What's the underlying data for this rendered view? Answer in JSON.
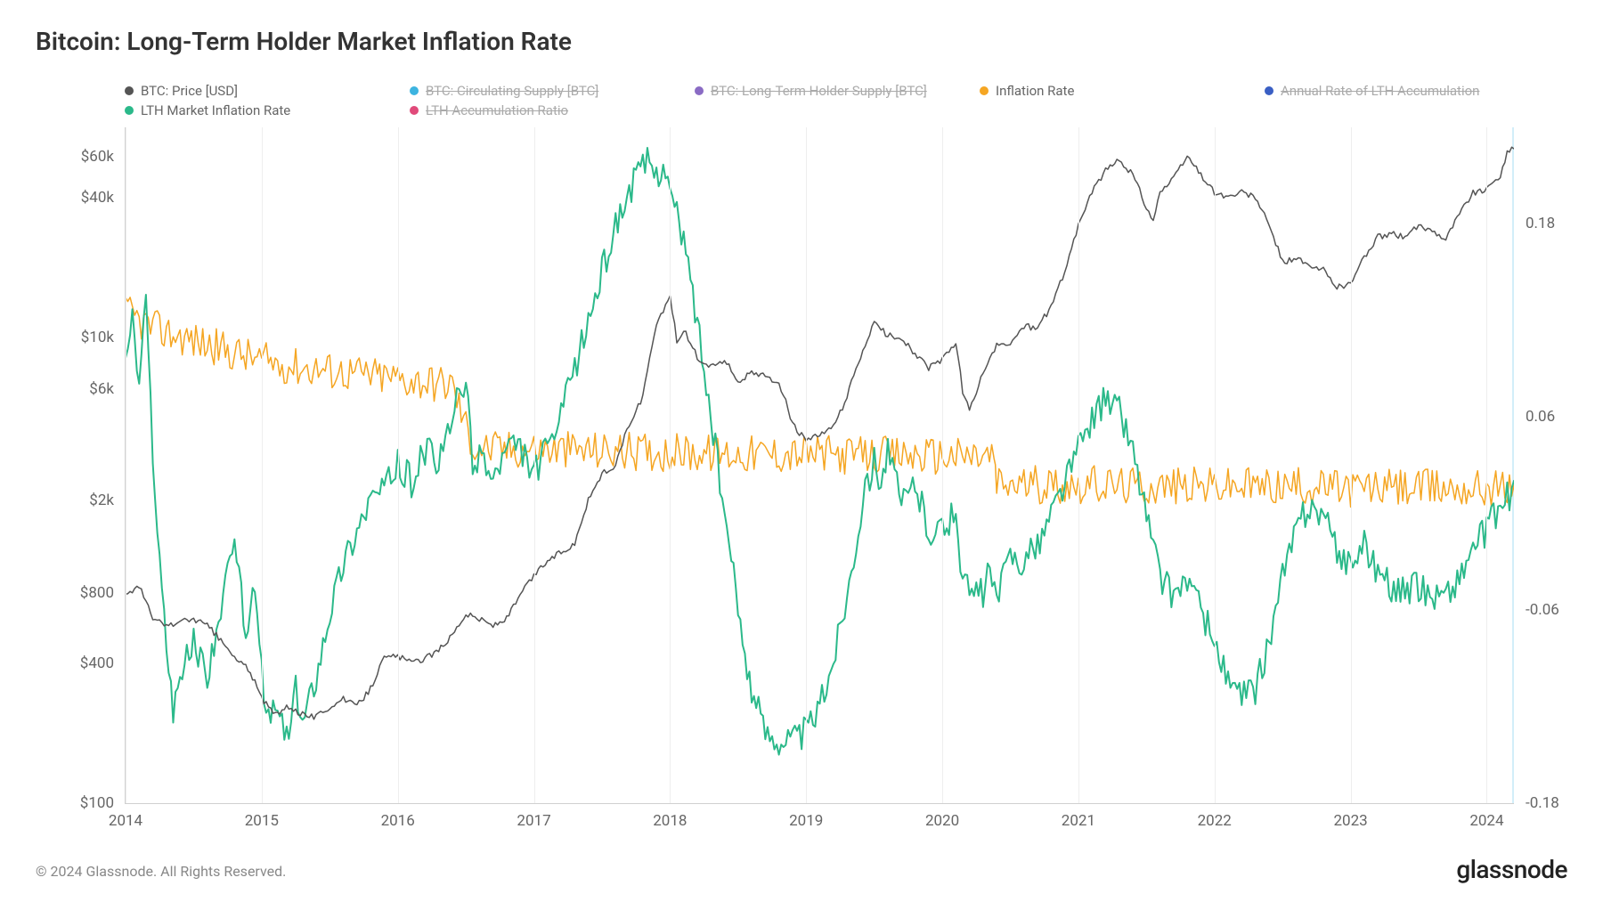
{
  "title": "Bitcoin: Long-Term Holder Market Inflation Rate",
  "footer": "© 2024 Glassnode. All Rights Reserved.",
  "brand": "glassnode",
  "colors": {
    "btc_price": "#555555",
    "circ_supply": "#3db4e0",
    "lth_supply": "#8a6bc4",
    "inflation_rate": "#f5a623",
    "annual_lth": "#3a5fc4",
    "lth_market": "#2bb98a",
    "lth_ratio": "#e04a7a",
    "grid": "#eeeeee",
    "axis": "#d0d0d0",
    "text": "#666666"
  },
  "legend": [
    {
      "label": "BTC: Price [USD]",
      "color": "#555555",
      "strike": false
    },
    {
      "label": "BTC: Circulating Supply [BTC]",
      "color": "#3db4e0",
      "strike": true
    },
    {
      "label": "BTC: Long-Term Holder Supply [BTC]",
      "color": "#8a6bc4",
      "strike": true
    },
    {
      "label": "Inflation Rate",
      "color": "#f5a623",
      "strike": false
    },
    {
      "label": "Annual Rate of LTH Accumulation",
      "color": "#3a5fc4",
      "strike": true
    },
    {
      "label": "LTH Market Inflation Rate",
      "color": "#2bb98a",
      "strike": false
    },
    {
      "label": "LTH Accumulation Ratio",
      "color": "#e04a7a",
      "strike": true
    }
  ],
  "chart": {
    "type": "line-multi",
    "x_range": [
      2014,
      2024.2
    ],
    "y_left_type": "log",
    "y_left_range": [
      100,
      80000
    ],
    "y_left_ticks": [
      {
        "v": 100,
        "label": "$100"
      },
      {
        "v": 400,
        "label": "$400"
      },
      {
        "v": 800,
        "label": "$800"
      },
      {
        "v": 2000,
        "label": "$2k"
      },
      {
        "v": 6000,
        "label": "$6k"
      },
      {
        "v": 10000,
        "label": "$10k"
      },
      {
        "v": 40000,
        "label": "$40k"
      },
      {
        "v": 60000,
        "label": "$60k"
      }
    ],
    "y_right_type": "linear",
    "y_right_range": [
      -0.18,
      0.24
    ],
    "y_right_ticks": [
      {
        "v": -0.18,
        "label": "-0.18"
      },
      {
        "v": -0.06,
        "label": "-0.06"
      },
      {
        "v": 0.06,
        "label": "0.06"
      },
      {
        "v": 0.18,
        "label": "0.18"
      }
    ],
    "x_ticks": [
      2014,
      2015,
      2016,
      2017,
      2018,
      2019,
      2020,
      2021,
      2022,
      2023,
      2024
    ],
    "series_btc_price": {
      "axis": "left",
      "color": "#555555",
      "width": 1.5,
      "noise": 0.03,
      "points": [
        [
          2014.0,
          800
        ],
        [
          2014.1,
          850
        ],
        [
          2014.2,
          620
        ],
        [
          2014.3,
          580
        ],
        [
          2014.4,
          600
        ],
        [
          2014.5,
          620
        ],
        [
          2014.6,
          580
        ],
        [
          2014.7,
          500
        ],
        [
          2014.8,
          420
        ],
        [
          2014.9,
          380
        ],
        [
          2015.0,
          280
        ],
        [
          2015.1,
          240
        ],
        [
          2015.2,
          260
        ],
        [
          2015.3,
          240
        ],
        [
          2015.4,
          235
        ],
        [
          2015.5,
          260
        ],
        [
          2015.6,
          280
        ],
        [
          2015.7,
          260
        ],
        [
          2015.8,
          310
        ],
        [
          2015.9,
          420
        ],
        [
          2016.0,
          430
        ],
        [
          2016.1,
          400
        ],
        [
          2016.2,
          420
        ],
        [
          2016.3,
          450
        ],
        [
          2016.4,
          530
        ],
        [
          2016.5,
          650
        ],
        [
          2016.6,
          620
        ],
        [
          2016.7,
          580
        ],
        [
          2016.8,
          620
        ],
        [
          2016.9,
          780
        ],
        [
          2017.0,
          950
        ],
        [
          2017.1,
          1100
        ],
        [
          2017.2,
          1200
        ],
        [
          2017.3,
          1300
        ],
        [
          2017.4,
          2000
        ],
        [
          2017.5,
          2600
        ],
        [
          2017.6,
          2800
        ],
        [
          2017.7,
          4200
        ],
        [
          2017.8,
          5500
        ],
        [
          2017.9,
          11000
        ],
        [
          2018.0,
          15000
        ],
        [
          2018.05,
          9500
        ],
        [
          2018.1,
          10800
        ],
        [
          2018.2,
          8200
        ],
        [
          2018.3,
          7500
        ],
        [
          2018.4,
          8000
        ],
        [
          2018.5,
          6500
        ],
        [
          2018.6,
          7000
        ],
        [
          2018.7,
          6800
        ],
        [
          2018.8,
          6400
        ],
        [
          2018.9,
          4200
        ],
        [
          2019.0,
          3600
        ],
        [
          2019.1,
          3800
        ],
        [
          2019.2,
          4100
        ],
        [
          2019.3,
          5500
        ],
        [
          2019.4,
          8200
        ],
        [
          2019.5,
          11500
        ],
        [
          2019.6,
          10200
        ],
        [
          2019.7,
          10000
        ],
        [
          2019.8,
          8500
        ],
        [
          2019.9,
          7400
        ],
        [
          2020.0,
          8000
        ],
        [
          2020.1,
          9500
        ],
        [
          2020.15,
          5800
        ],
        [
          2020.2,
          4800
        ],
        [
          2020.3,
          7000
        ],
        [
          2020.4,
          9200
        ],
        [
          2020.5,
          9400
        ],
        [
          2020.6,
          11200
        ],
        [
          2020.7,
          11000
        ],
        [
          2020.8,
          13500
        ],
        [
          2020.9,
          19000
        ],
        [
          2021.0,
          30000
        ],
        [
          2021.1,
          42000
        ],
        [
          2021.2,
          52000
        ],
        [
          2021.3,
          58000
        ],
        [
          2021.4,
          50000
        ],
        [
          2021.5,
          36000
        ],
        [
          2021.55,
          32000
        ],
        [
          2021.6,
          42000
        ],
        [
          2021.7,
          48000
        ],
        [
          2021.8,
          60000
        ],
        [
          2021.9,
          50000
        ],
        [
          2022.0,
          42000
        ],
        [
          2022.1,
          40000
        ],
        [
          2022.2,
          42000
        ],
        [
          2022.3,
          40000
        ],
        [
          2022.4,
          30000
        ],
        [
          2022.5,
          21000
        ],
        [
          2022.6,
          22000
        ],
        [
          2022.7,
          20000
        ],
        [
          2022.8,
          19500
        ],
        [
          2022.9,
          16500
        ],
        [
          2023.0,
          17000
        ],
        [
          2023.1,
          22000
        ],
        [
          2023.2,
          27000
        ],
        [
          2023.3,
          28000
        ],
        [
          2023.4,
          27000
        ],
        [
          2023.5,
          30000
        ],
        [
          2023.6,
          29000
        ],
        [
          2023.7,
          26500
        ],
        [
          2023.8,
          34000
        ],
        [
          2023.9,
          42000
        ],
        [
          2024.0,
          43000
        ],
        [
          2024.1,
          50000
        ],
        [
          2024.15,
          62000
        ],
        [
          2024.2,
          65000
        ]
      ]
    },
    "series_inflation": {
      "axis": "right",
      "color": "#f5a623",
      "width": 1.5,
      "noise": 0.012,
      "points": [
        [
          2014.0,
          0.125
        ],
        [
          2014.2,
          0.115
        ],
        [
          2014.4,
          0.11
        ],
        [
          2014.6,
          0.105
        ],
        [
          2014.8,
          0.1
        ],
        [
          2015.0,
          0.095
        ],
        [
          2015.2,
          0.092
        ],
        [
          2015.4,
          0.09
        ],
        [
          2015.6,
          0.088
        ],
        [
          2015.8,
          0.086
        ],
        [
          2016.0,
          0.084
        ],
        [
          2016.2,
          0.082
        ],
        [
          2016.4,
          0.08
        ],
        [
          2016.55,
          0.042
        ],
        [
          2016.7,
          0.04
        ],
        [
          2016.9,
          0.04
        ],
        [
          2017.0,
          0.04
        ],
        [
          2017.5,
          0.039
        ],
        [
          2018.0,
          0.038
        ],
        [
          2018.5,
          0.037
        ],
        [
          2019.0,
          0.037
        ],
        [
          2019.5,
          0.036
        ],
        [
          2020.0,
          0.036
        ],
        [
          2020.38,
          0.035
        ],
        [
          2020.4,
          0.018
        ],
        [
          2020.7,
          0.018
        ],
        [
          2021.0,
          0.018
        ],
        [
          2021.5,
          0.017
        ],
        [
          2022.0,
          0.017
        ],
        [
          2022.5,
          0.017
        ],
        [
          2023.0,
          0.016
        ],
        [
          2023.5,
          0.016
        ],
        [
          2024.0,
          0.016
        ],
        [
          2024.2,
          0.016
        ]
      ]
    },
    "series_lth_market": {
      "axis": "right",
      "color": "#2bb98a",
      "width": 2,
      "noise": 0.01,
      "points": [
        [
          2014.0,
          0.1
        ],
        [
          2014.05,
          0.12
        ],
        [
          2014.1,
          0.08
        ],
        [
          2014.15,
          0.13
        ],
        [
          2014.2,
          0.04
        ],
        [
          2014.25,
          -0.03
        ],
        [
          2014.3,
          -0.08
        ],
        [
          2014.35,
          -0.12
        ],
        [
          2014.4,
          -0.1
        ],
        [
          2014.5,
          -0.08
        ],
        [
          2014.6,
          -0.1
        ],
        [
          2014.7,
          -0.06
        ],
        [
          2014.8,
          -0.02
        ],
        [
          2014.85,
          -0.05
        ],
        [
          2014.9,
          -0.08
        ],
        [
          2014.95,
          -0.04
        ],
        [
          2015.0,
          -0.1
        ],
        [
          2015.05,
          -0.13
        ],
        [
          2015.1,
          -0.12
        ],
        [
          2015.2,
          -0.14
        ],
        [
          2015.25,
          -0.11
        ],
        [
          2015.3,
          -0.13
        ],
        [
          2015.4,
          -0.1
        ],
        [
          2015.5,
          -0.06
        ],
        [
          2015.6,
          -0.03
        ],
        [
          2015.7,
          -0.01
        ],
        [
          2015.8,
          0.01
        ],
        [
          2015.9,
          0.015
        ],
        [
          2016.0,
          0.03
        ],
        [
          2016.1,
          0.02
        ],
        [
          2016.2,
          0.04
        ],
        [
          2016.3,
          0.03
        ],
        [
          2016.4,
          0.06
        ],
        [
          2016.5,
          0.085
        ],
        [
          2016.55,
          0.025
        ],
        [
          2016.6,
          0.04
        ],
        [
          2016.7,
          0.02
        ],
        [
          2016.8,
          0.04
        ],
        [
          2016.9,
          0.04
        ],
        [
          2017.0,
          0.025
        ],
        [
          2017.1,
          0.04
        ],
        [
          2017.2,
          0.06
        ],
        [
          2017.3,
          0.09
        ],
        [
          2017.4,
          0.12
        ],
        [
          2017.5,
          0.15
        ],
        [
          2017.6,
          0.18
        ],
        [
          2017.7,
          0.2
        ],
        [
          2017.8,
          0.215
        ],
        [
          2017.85,
          0.22
        ],
        [
          2017.9,
          0.21
        ],
        [
          2017.95,
          0.22
        ],
        [
          2018.0,
          0.2
        ],
        [
          2018.1,
          0.17
        ],
        [
          2018.2,
          0.12
        ],
        [
          2018.3,
          0.06
        ],
        [
          2018.4,
          0.0
        ],
        [
          2018.5,
          -0.06
        ],
        [
          2018.6,
          -0.11
        ],
        [
          2018.7,
          -0.135
        ],
        [
          2018.8,
          -0.14
        ],
        [
          2018.9,
          -0.14
        ],
        [
          2019.0,
          -0.135
        ],
        [
          2019.1,
          -0.12
        ],
        [
          2019.2,
          -0.09
        ],
        [
          2019.3,
          -0.05
        ],
        [
          2019.4,
          0.0
        ],
        [
          2019.5,
          0.035
        ],
        [
          2019.55,
          0.02
        ],
        [
          2019.6,
          0.04
        ],
        [
          2019.7,
          0.005
        ],
        [
          2019.8,
          0.02
        ],
        [
          2019.9,
          -0.01
        ],
        [
          2020.0,
          -0.01
        ],
        [
          2020.1,
          0.0
        ],
        [
          2020.15,
          -0.04
        ],
        [
          2020.2,
          -0.05
        ],
        [
          2020.3,
          -0.05
        ],
        [
          2020.35,
          -0.035
        ],
        [
          2020.4,
          -0.055
        ],
        [
          2020.5,
          -0.025
        ],
        [
          2020.6,
          -0.03
        ],
        [
          2020.7,
          -0.02
        ],
        [
          2020.8,
          0.0
        ],
        [
          2020.9,
          0.02
        ],
        [
          2021.0,
          0.04
        ],
        [
          2021.1,
          0.06
        ],
        [
          2021.2,
          0.07
        ],
        [
          2021.3,
          0.065
        ],
        [
          2021.4,
          0.04
        ],
        [
          2021.5,
          0.0
        ],
        [
          2021.6,
          -0.04
        ],
        [
          2021.7,
          -0.05
        ],
        [
          2021.8,
          -0.04
        ],
        [
          2021.9,
          -0.06
        ],
        [
          2022.0,
          -0.08
        ],
        [
          2022.1,
          -0.105
        ],
        [
          2022.2,
          -0.115
        ],
        [
          2022.3,
          -0.11
        ],
        [
          2022.4,
          -0.08
        ],
        [
          2022.5,
          -0.04
        ],
        [
          2022.6,
          -0.01
        ],
        [
          2022.7,
          0.005
        ],
        [
          2022.8,
          0.0
        ],
        [
          2022.9,
          -0.025
        ],
        [
          2023.0,
          -0.03
        ],
        [
          2023.1,
          -0.02
        ],
        [
          2023.2,
          -0.035
        ],
        [
          2023.3,
          -0.045
        ],
        [
          2023.4,
          -0.05
        ],
        [
          2023.5,
          -0.045
        ],
        [
          2023.6,
          -0.05
        ],
        [
          2023.7,
          -0.05
        ],
        [
          2023.8,
          -0.04
        ],
        [
          2023.9,
          -0.02
        ],
        [
          2024.0,
          -0.01
        ],
        [
          2024.1,
          0.005
        ],
        [
          2024.2,
          0.015
        ]
      ]
    }
  }
}
